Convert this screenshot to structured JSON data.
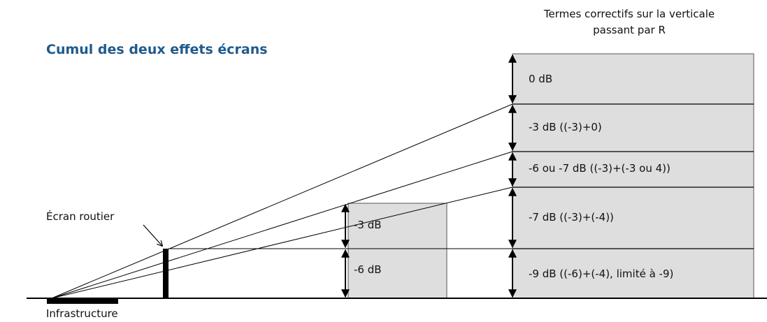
{
  "title": "Cumul des deux effets écrans",
  "header_line1": "Termes correctifs sur la verticale",
  "header_line2": "passant par R",
  "colors": {
    "title": "#1f5a8c",
    "panel_fill": "#dedede",
    "ink": "#000000"
  },
  "labels": {
    "ecran_routier": "Écran routier",
    "infrastructure": "Infrastructure",
    "mid_upper": "-3 dB",
    "mid_lower": "-6 dB",
    "right_0": "0 dB",
    "right_1": "-3 dB ((-3)+0)",
    "right_2": "-6 ou -7 dB  ((-3)+(-3 ou 4))",
    "right_3": "-7 dB  ((-3)+(-4))",
    "right_4": "-9 dB  ((-6)+(-4), limité à -9)"
  }
}
